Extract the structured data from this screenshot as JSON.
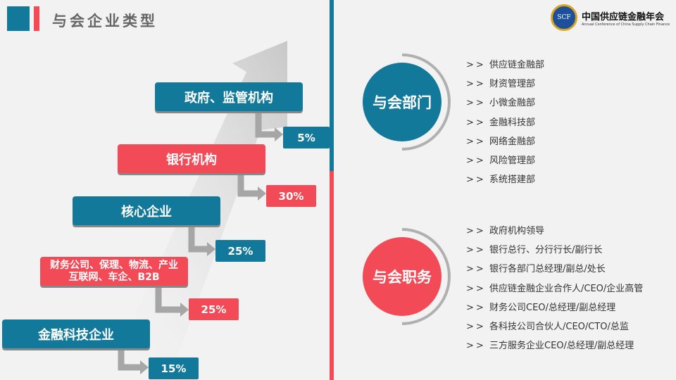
{
  "header": {
    "title": "与会企业类型",
    "logo_text": "中国供应链金融年会",
    "logo_subtitle": "Annual Conference of China Supply Chain Finance",
    "logo_badge": "SCF"
  },
  "colors": {
    "blue": "#13799a",
    "red": "#f34a58",
    "gray": "#a6a6a6"
  },
  "types": [
    {
      "label": "政府、监管机构",
      "pct": "5%",
      "color": "blue"
    },
    {
      "label": "银行机构",
      "pct": "30%",
      "color": "red"
    },
    {
      "label": "核心企业",
      "pct": "25%",
      "color": "blue"
    },
    {
      "label": "财务公司、保理、物流、产业互联网、车企、B2B",
      "pct": "25%",
      "color": "red"
    },
    {
      "label": "金融科技企业",
      "pct": "15%",
      "color": "blue"
    }
  ],
  "departments": {
    "title": "与会部门",
    "arrow": ">>",
    "items": [
      "供应链金融部",
      "财资管理部",
      "小微金融部",
      "金融科技部",
      "网络金融部",
      "风险管理部",
      "系统搭建部"
    ]
  },
  "positions": {
    "title": "与会职务",
    "arrow": ">>",
    "items": [
      "政府机构领导",
      "银行总行、分行行长/副行长",
      "银行各部门总经理/副总/处长",
      "供应链金融企业合作人/CEO/企业高管",
      "财务公司CEO/总经理/副总经理",
      "各科技公司合伙人/CEO/CTO/总监",
      "三方服务企业CEO/总经理/副总经理"
    ]
  }
}
